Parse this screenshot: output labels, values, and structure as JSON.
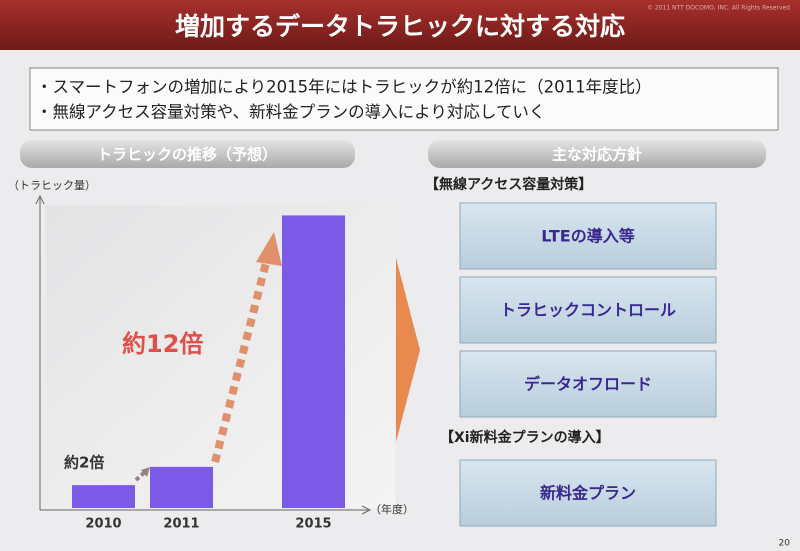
{
  "title": "増加するデータトラヒックに対する対応",
  "copyright": "© 2011 NTT DOCOMO, INC. All Rights Reserved",
  "bullets": [
    "・スマートフォンの増加により2015年にはトラヒックが約12倍に（2011年度比）",
    "・無線アクセス容量対策や、新料金プランの導入により対応していく"
  ],
  "left_header": "トラヒックの推移（予想）",
  "right_header": "主な対応方針",
  "chart_data": {
    "type": "bar",
    "y_label": "（トラヒック量）",
    "x_label": "（年度）",
    "categories": [
      "2010",
      "2011",
      "2015"
    ],
    "values": [
      1,
      1.8,
      12.8
    ],
    "ylim": [
      0,
      14
    ],
    "color": "#7a5ae6",
    "annotations": [
      "約2倍",
      "約12倍"
    ]
  },
  "sections": [
    {
      "heading": "【無線アクセス容量対策】",
      "items": [
        "LTEの導入等",
        "トラヒックコントロール",
        "データオフロード"
      ]
    },
    {
      "heading": "【Xi新料金プランの導入】",
      "items": [
        "新料金プラン"
      ]
    }
  ],
  "page_number": "20"
}
